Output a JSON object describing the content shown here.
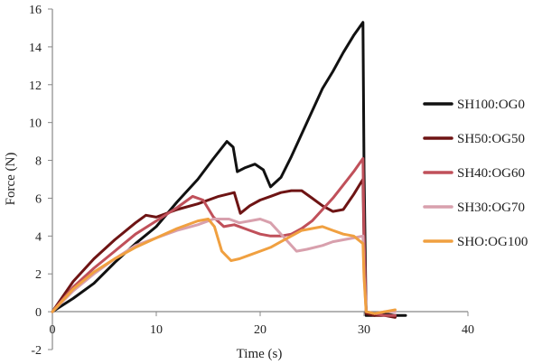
{
  "chart_data": {
    "type": "line",
    "title": "",
    "xlabel": "Time (s)",
    "ylabel": "Force (N)",
    "xlim": [
      0,
      40
    ],
    "ylim": [
      -2,
      16
    ],
    "xticks": [
      0,
      10,
      20,
      30,
      40
    ],
    "yticks": [
      -2,
      0,
      2,
      4,
      6,
      8,
      10,
      12,
      14,
      16
    ],
    "grid": false,
    "legend_position": "right",
    "series": [
      {
        "name": "SH100:OG0",
        "color": "#111111",
        "x": [
          0,
          2,
          4,
          6,
          8,
          10,
          12,
          14,
          15.5,
          16.8,
          17.4,
          17.8,
          18.5,
          19.5,
          20.3,
          21,
          22,
          23,
          24,
          25,
          26,
          27,
          28,
          29,
          29.9,
          30,
          30.2,
          31,
          32,
          33,
          34
        ],
        "y": [
          0,
          0.7,
          1.5,
          2.6,
          3.6,
          4.5,
          5.8,
          7.0,
          8.1,
          9.0,
          8.7,
          7.4,
          7.6,
          7.8,
          7.5,
          6.6,
          7.1,
          8.2,
          9.4,
          10.6,
          11.8,
          12.7,
          13.7,
          14.6,
          15.3,
          7.5,
          -0.2,
          -0.2,
          -0.1,
          -0.2,
          -0.2
        ]
      },
      {
        "name": "SH50:OG50",
        "color": "#6e1414",
        "x": [
          0,
          2,
          4,
          6,
          8,
          9,
          10,
          12,
          14,
          16,
          17.5,
          18.1,
          19,
          20,
          21,
          22,
          23,
          24,
          25,
          26,
          27,
          28,
          29,
          29.9,
          30,
          30.2,
          31,
          32,
          33
        ],
        "y": [
          0,
          1.6,
          2.8,
          3.8,
          4.7,
          5.1,
          5.0,
          5.4,
          5.7,
          6.1,
          6.3,
          5.2,
          5.6,
          5.9,
          6.1,
          6.3,
          6.4,
          6.4,
          6.0,
          5.6,
          5.3,
          5.4,
          6.2,
          7.0,
          3.5,
          -0.1,
          -0.2,
          -0.2,
          -0.3
        ]
      },
      {
        "name": "SH40:OG60",
        "color": "#c0505a",
        "x": [
          0,
          2,
          4,
          6,
          8,
          10,
          12,
          13.5,
          14.5,
          15.5,
          16.5,
          17.5,
          19,
          20,
          21,
          22,
          23,
          24,
          25,
          26,
          27,
          28,
          29,
          29.9,
          30,
          30.2,
          31,
          32,
          33
        ],
        "y": [
          0,
          1.3,
          2.3,
          3.2,
          4.1,
          4.8,
          5.5,
          6.1,
          5.9,
          5.0,
          4.5,
          4.6,
          4.3,
          4.1,
          4.0,
          4.0,
          4.1,
          4.4,
          4.8,
          5.4,
          6.0,
          6.7,
          7.4,
          8.1,
          4.0,
          0.0,
          -0.1,
          -0.2,
          -0.2
        ]
      },
      {
        "name": "SH30:OG70",
        "color": "#d8a0ad",
        "x": [
          0,
          2,
          4,
          6,
          8,
          10,
          12,
          14,
          15.5,
          17,
          18,
          19,
          20,
          21,
          22.5,
          23.5,
          24.5,
          26,
          27,
          28,
          29,
          29.9,
          30,
          30.2,
          31,
          32,
          33
        ],
        "y": [
          0,
          1.1,
          2.0,
          2.8,
          3.5,
          3.9,
          4.3,
          4.6,
          4.9,
          4.9,
          4.7,
          4.8,
          4.9,
          4.7,
          3.8,
          3.2,
          3.3,
          3.5,
          3.7,
          3.8,
          3.9,
          4.0,
          2.0,
          0.0,
          -0.1,
          0.0,
          0.0
        ]
      },
      {
        "name": "SHO:OG100",
        "color": "#f0a040",
        "x": [
          0,
          2,
          4,
          6,
          8,
          10,
          12,
          14,
          15,
          15.6,
          16.3,
          17.2,
          18,
          19,
          20,
          21,
          22,
          23,
          24,
          25,
          26,
          27,
          28,
          29,
          29.9,
          30,
          30.2,
          31,
          32,
          33
        ],
        "y": [
          0,
          1.2,
          2.1,
          2.8,
          3.4,
          3.9,
          4.4,
          4.8,
          4.9,
          4.5,
          3.2,
          2.7,
          2.8,
          3.0,
          3.2,
          3.4,
          3.7,
          4.0,
          4.3,
          4.4,
          4.5,
          4.3,
          4.1,
          4.0,
          3.6,
          1.8,
          0.0,
          -0.1,
          0.0,
          0.1
        ]
      }
    ]
  }
}
